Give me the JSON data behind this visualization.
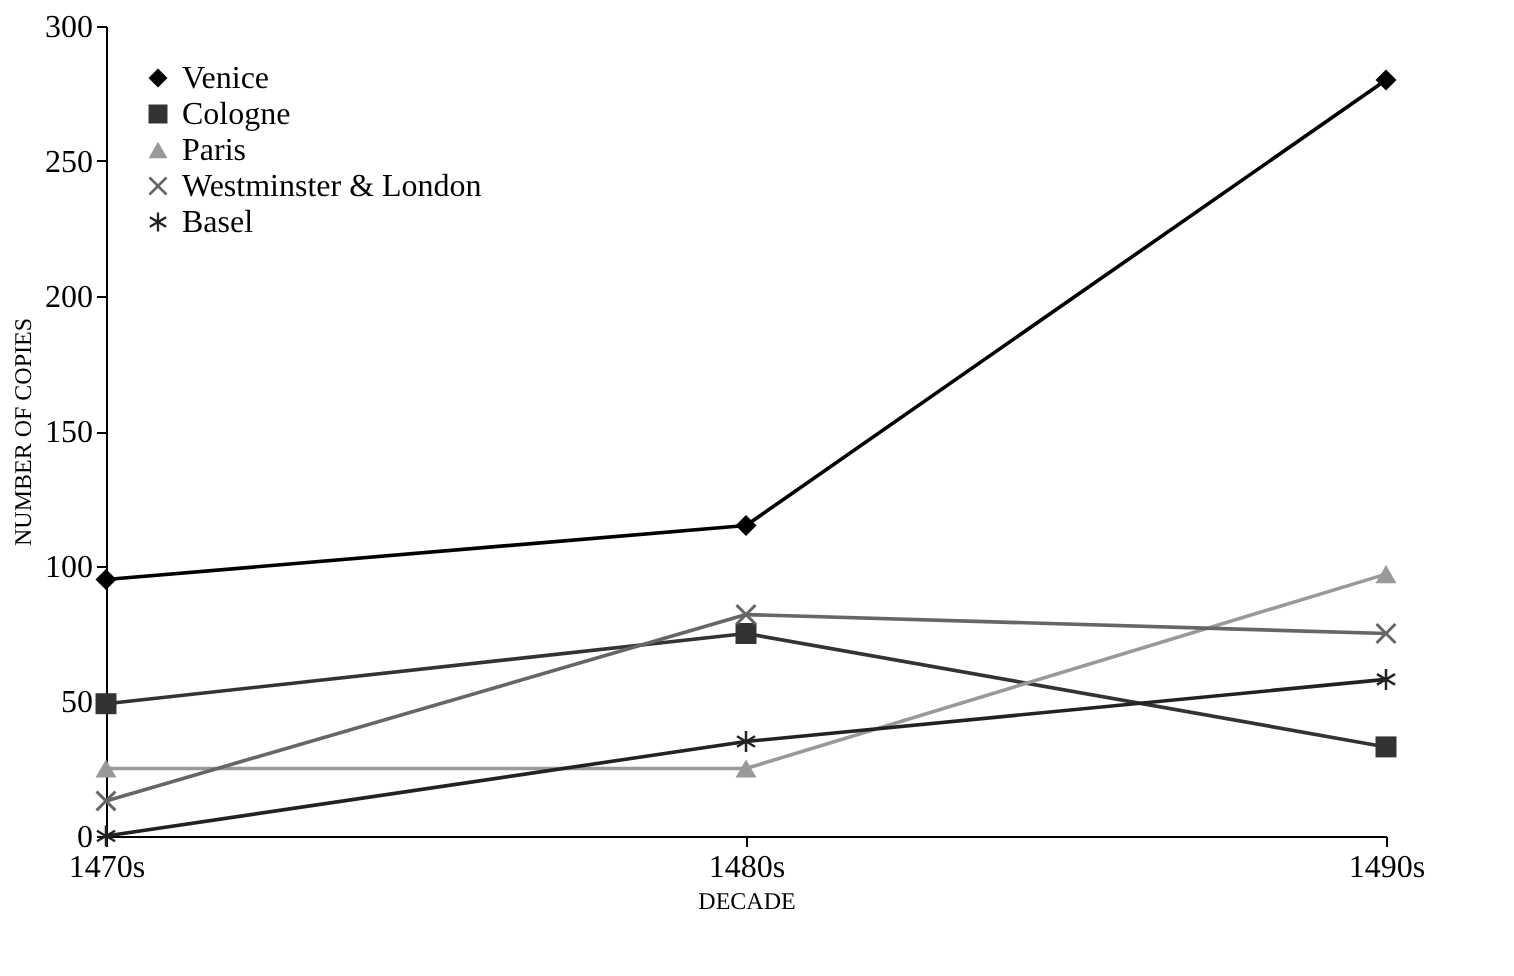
{
  "chart_data": {
    "type": "line",
    "xlabel": "DECADE",
    "ylabel": "NUMBER OF COPIES",
    "categories": [
      "1470s",
      "1480s",
      "1490s"
    ],
    "series": [
      {
        "name": "Venice",
        "color": "#000000",
        "marker": "diamond",
        "values": [
          95,
          115,
          280
        ]
      },
      {
        "name": "Cologne",
        "color": "#333333",
        "marker": "square",
        "values": [
          49,
          75,
          33
        ]
      },
      {
        "name": "Paris",
        "color": "#999999",
        "marker": "triangle",
        "values": [
          25,
          25,
          97
        ]
      },
      {
        "name": "Westminster & London",
        "color": "#666666",
        "marker": "cross",
        "values": [
          13,
          82,
          75
        ]
      },
      {
        "name": "Basel",
        "color": "#222222",
        "marker": "star",
        "values": [
          0,
          35,
          58
        ]
      }
    ],
    "ylim": [
      0,
      300
    ],
    "yticks": [
      0,
      50,
      100,
      150,
      200,
      250,
      300
    ],
    "grid": false,
    "legend": "top left",
    "line_style": "solid"
  }
}
